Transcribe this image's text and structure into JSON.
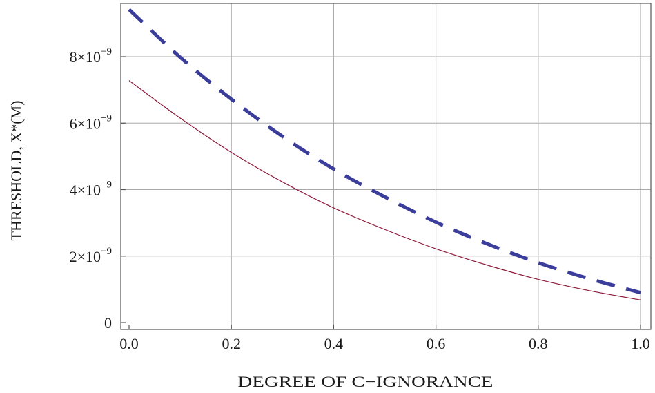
{
  "chart_data": {
    "type": "line",
    "title": "",
    "xlabel": "DEGREE OF C−IGNORANCE",
    "ylabel": "THRESHOLD, X*(M)",
    "xlim": [
      0,
      1.0
    ],
    "ylim": [
      0,
      9.6e-09
    ],
    "grid": true,
    "x_ticks": [
      {
        "value": 0.0,
        "label": "0.0"
      },
      {
        "value": 0.2,
        "label": "0.2"
      },
      {
        "value": 0.4,
        "label": "0.4"
      },
      {
        "value": 0.6,
        "label": "0.6"
      },
      {
        "value": 0.8,
        "label": "0.8"
      },
      {
        "value": 1.0,
        "label": "1.0"
      }
    ],
    "y_ticks": [
      {
        "value": 0,
        "label": "0",
        "mantissa": "",
        "exponent": ""
      },
      {
        "value": 2e-09,
        "label": "2×10⁻⁹",
        "mantissa": "2×10",
        "exponent": "−9"
      },
      {
        "value": 4e-09,
        "label": "4×10⁻⁹",
        "mantissa": "4×10",
        "exponent": "−9"
      },
      {
        "value": 6e-09,
        "label": "6×10⁻⁹",
        "mantissa": "6×10",
        "exponent": "−9"
      },
      {
        "value": 8e-09,
        "label": "8×10⁻⁹",
        "mantissa": "8×10",
        "exponent": "−9"
      }
    ],
    "series": [
      {
        "style": "dashed",
        "color": "#3b3d9a",
        "x": [
          0,
          0.1,
          0.2,
          0.3,
          0.4,
          0.5,
          0.6,
          0.7,
          0.8,
          0.9,
          1.0
        ],
        "values": [
          9.42e-09,
          7.98e-09,
          6.72e-09,
          5.6e-09,
          4.62e-09,
          3.78e-09,
          3.02e-09,
          2.37e-09,
          1.8e-09,
          1.32e-09,
          9e-10
        ]
      },
      {
        "style": "solid",
        "color": "#8b1a3a",
        "x": [
          0,
          0.1,
          0.2,
          0.3,
          0.4,
          0.5,
          0.6,
          0.7,
          0.8,
          0.9,
          1.0
        ],
        "values": [
          7.28e-09,
          6.15e-09,
          5.12e-09,
          4.23e-09,
          3.45e-09,
          2.8e-09,
          2.22e-09,
          1.73e-09,
          1.3e-09,
          9.6e-10,
          6.8e-10
        ]
      }
    ]
  }
}
